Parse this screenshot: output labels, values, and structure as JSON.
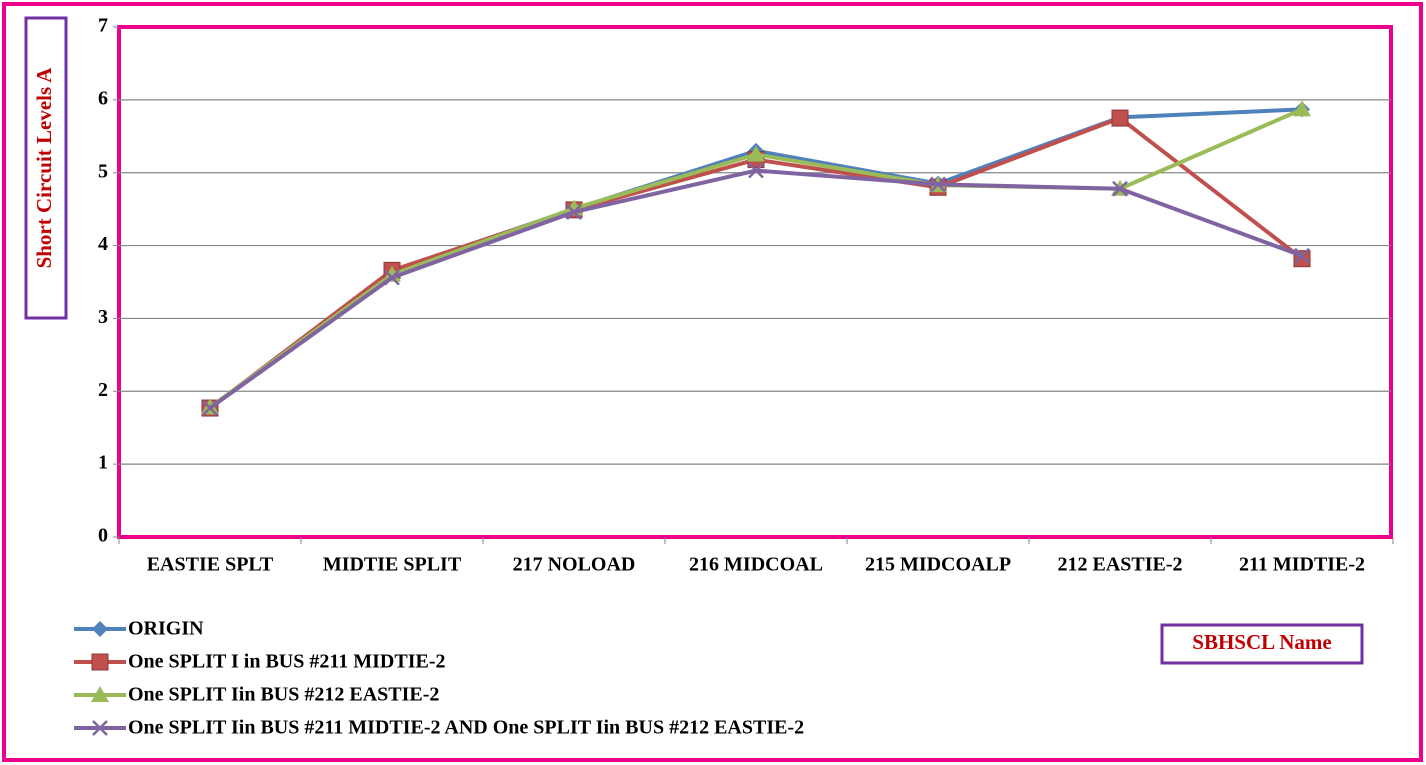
{
  "chart_data": {
    "type": "line",
    "y_label": "Short Circuit Levels A",
    "x_label": "SBHSCL Name",
    "categories": [
      "EASTIE SPLT",
      "MIDTIE SPLIT",
      "217 NOLOAD",
      "216 MIDCOAL",
      "215 MIDCOALP",
      "212 EASTIE-2",
      "211 MIDTIE-2"
    ],
    "series": [
      {
        "name": "ORIGIN",
        "color": "#4f81bd",
        "marker": "diamond",
        "values": [
          1.77,
          3.65,
          4.5,
          5.3,
          4.85,
          5.76,
          5.87
        ]
      },
      {
        "name": "One SPLIT I in BUS #211 MIDTIE-2",
        "color": "#c0504d",
        "marker": "square",
        "values": [
          1.77,
          3.66,
          4.49,
          5.18,
          4.8,
          5.75,
          3.82
        ]
      },
      {
        "name": "One SPLIT Iin BUS #212 EASTIE-2",
        "color": "#9bbb59",
        "marker": "triangle",
        "values": [
          1.78,
          3.6,
          4.51,
          5.25,
          4.83,
          4.78,
          5.87
        ]
      },
      {
        "name": "One SPLIT Iin BUS #211 MIDTIE-2 AND One SPLIT Iin BUS #212 EASTIE-2",
        "color": "#8064a2",
        "marker": "x",
        "values": [
          1.77,
          3.56,
          4.46,
          5.03,
          4.84,
          4.78,
          3.86
        ]
      }
    ],
    "ylim": [
      0,
      7
    ],
    "yticks": [
      0,
      1,
      2,
      3,
      4,
      5,
      6,
      7
    ],
    "grid": true,
    "legend": "bottom-left"
  }
}
